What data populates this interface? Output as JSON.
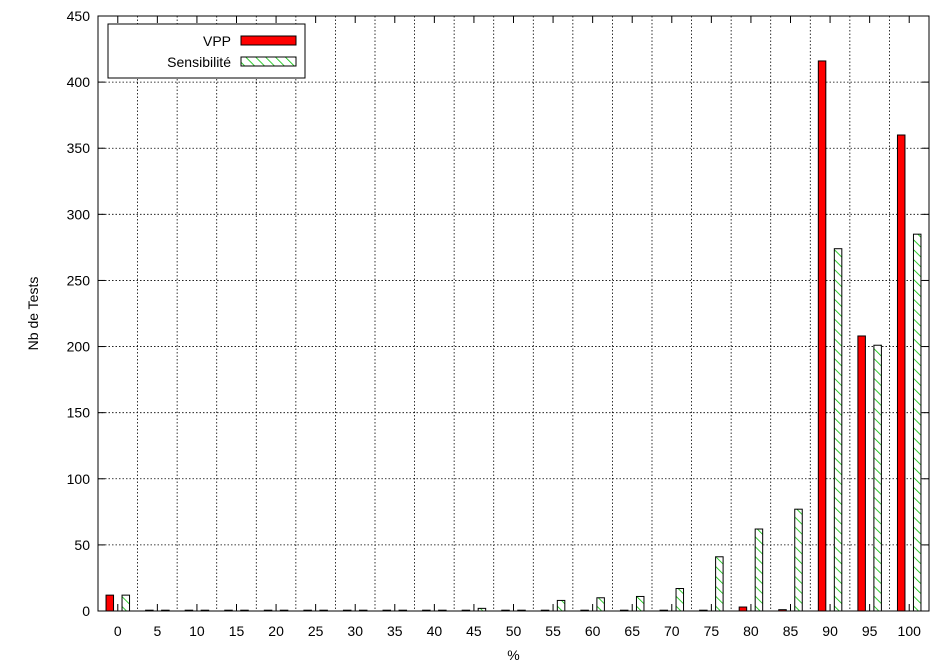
{
  "chart_data": {
    "type": "bar",
    "title": "",
    "xlabel": "%",
    "ylabel": "Nb de Tests",
    "ylim": [
      0,
      450
    ],
    "yticks": [
      0,
      50,
      100,
      150,
      200,
      250,
      300,
      350,
      400,
      450
    ],
    "grid": true,
    "legend_position": "top-left",
    "categories": [
      "0",
      "5",
      "10",
      "15",
      "20",
      "25",
      "30",
      "35",
      "40",
      "45",
      "50",
      "55",
      "60",
      "65",
      "70",
      "75",
      "80",
      "85",
      "90",
      "95",
      "100"
    ],
    "series": [
      {
        "name": "VPP",
        "color": "#ff0000",
        "fill": "solid",
        "values": [
          12,
          0,
          0,
          0,
          0,
          0,
          0,
          0,
          0,
          0,
          0,
          0,
          0,
          0,
          0,
          0,
          3,
          1,
          416,
          208,
          360
        ]
      },
      {
        "name": "Sensibilité",
        "color": "#00c000",
        "fill": "hatched",
        "values": [
          12,
          0,
          0,
          0,
          0,
          0,
          0,
          0,
          0,
          2,
          0,
          8,
          10,
          11,
          17,
          41,
          62,
          77,
          274,
          201,
          285
        ]
      }
    ]
  }
}
